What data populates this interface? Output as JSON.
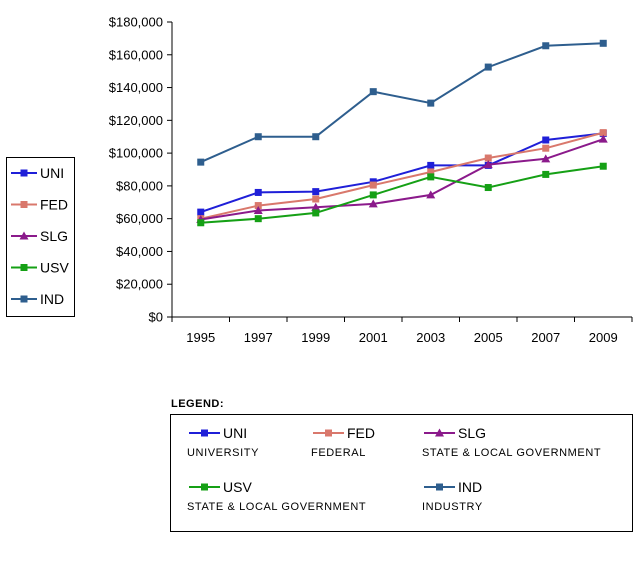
{
  "chart_data": {
    "type": "line",
    "title": "",
    "xlabel": "",
    "ylabel": "",
    "categories": [
      "1995",
      "1997",
      "1999",
      "2001",
      "2003",
      "2005",
      "2007",
      "2009"
    ],
    "ylim": [
      0,
      180000
    ],
    "yticks": [
      "$0",
      "$20,000",
      "$40,000",
      "$60,000",
      "$80,000",
      "$100,000",
      "$120,000",
      "$140,000",
      "$160,000",
      "$180,000"
    ],
    "grid": false,
    "legend_position": "left",
    "series": [
      {
        "name": "UNI",
        "color": "#1f1fd8",
        "marker": "square",
        "values": [
          64000,
          76000,
          76500,
          82500,
          92500,
          92500,
          108000,
          112000
        ]
      },
      {
        "name": "FED",
        "color": "#d9786c",
        "marker": "square",
        "values": [
          60000,
          68000,
          72000,
          80500,
          88500,
          97000,
          103000,
          112500
        ]
      },
      {
        "name": "SLG",
        "color": "#8b1a8b",
        "marker": "triangle",
        "values": [
          59500,
          65000,
          67000,
          69000,
          74500,
          93000,
          96500,
          108500
        ]
      },
      {
        "name": "USV",
        "color": "#15a015",
        "marker": "square",
        "values": [
          57500,
          60000,
          63500,
          74500,
          85500,
          79000,
          87000,
          92000
        ]
      },
      {
        "name": "IND",
        "color": "#2e5e8e",
        "marker": "square",
        "values": [
          94500,
          110000,
          110000,
          137500,
          130500,
          152500,
          165500,
          167000
        ]
      }
    ]
  },
  "legend_box": {
    "title": "LEGEND:",
    "items": [
      {
        "key": "UNI",
        "desc": "UNIVERSITY"
      },
      {
        "key": "FED",
        "desc": "FEDERAL"
      },
      {
        "key": "SLG",
        "desc": "STATE & LOCAL GOVERNMENT"
      },
      {
        "key": "USV",
        "desc": "STATE & LOCAL GOVERNMENT"
      },
      {
        "key": "IND",
        "desc": "INDUSTRY"
      }
    ]
  }
}
